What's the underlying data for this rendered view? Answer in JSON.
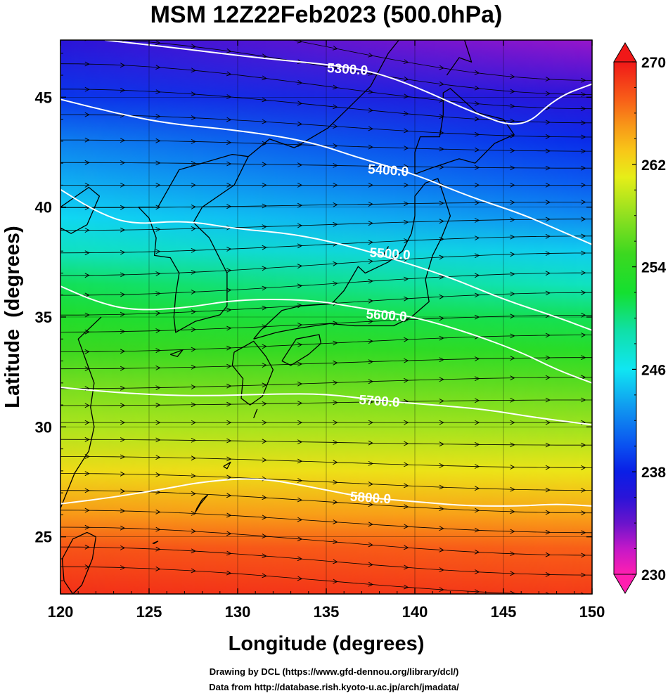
{
  "chart_data": {
    "type": "heatmap",
    "title": "MSM 12Z22Feb2023 (500.0hPa)",
    "xlabel": "Longitude (degrees)",
    "ylabel": "Latitude  (degrees)",
    "xlim": [
      120,
      150
    ],
    "ylim": [
      22.4,
      47.6
    ],
    "x_ticks": [
      "120",
      "125",
      "130",
      "135",
      "140",
      "145",
      "150"
    ],
    "y_ticks": [
      "25",
      "30",
      "35",
      "40",
      "45"
    ],
    "grid": true,
    "colorbar": {
      "min": 230,
      "max": 270,
      "ticks": [
        "230",
        "238",
        "246",
        "254",
        "262",
        "270"
      ],
      "extend": "both",
      "stops": [
        {
          "value": 230,
          "color": "#ff1fb0"
        },
        {
          "value": 232,
          "color": "#c418c8"
        },
        {
          "value": 234,
          "color": "#6a14cc"
        },
        {
          "value": 236,
          "color": "#2a14d8"
        },
        {
          "value": 238,
          "color": "#0a1ee6"
        },
        {
          "value": 240,
          "color": "#0a50f0"
        },
        {
          "value": 243,
          "color": "#1098f0"
        },
        {
          "value": 246,
          "color": "#10e6f2"
        },
        {
          "value": 249,
          "color": "#10e0a8"
        },
        {
          "value": 252,
          "color": "#14e030"
        },
        {
          "value": 255,
          "color": "#3cd820"
        },
        {
          "value": 258,
          "color": "#90e020"
        },
        {
          "value": 261,
          "color": "#e6ee18"
        },
        {
          "value": 263,
          "color": "#f8c818"
        },
        {
          "value": 265,
          "color": "#f89818"
        },
        {
          "value": 267,
          "color": "#f86018"
        },
        {
          "value": 270,
          "color": "#f01818"
        }
      ]
    },
    "temperature_field": {
      "lat": [
        47.6,
        45,
        43,
        41,
        39.5,
        38,
        36.5,
        35,
        33.5,
        32,
        30,
        28,
        26,
        24.5,
        22.4
      ],
      "values_west": [
        236,
        239,
        242,
        244,
        245.5,
        248,
        251,
        253,
        255,
        257,
        259,
        262,
        265,
        267.5,
        269
      ],
      "values_east": [
        233,
        236,
        238.5,
        240.5,
        242.5,
        245,
        248,
        251,
        253.5,
        256,
        258.5,
        261.5,
        264.5,
        267,
        268.5
      ]
    },
    "height_contours": [
      {
        "label": "5300.0",
        "value": 5300,
        "points": [
          [
            122.5,
            47.6
          ],
          [
            127,
            47.2
          ],
          [
            131,
            46.8
          ],
          [
            135,
            46.5
          ],
          [
            137.5,
            46.2
          ],
          [
            140,
            45.5
          ],
          [
            143,
            44.4
          ],
          [
            146,
            43.5
          ],
          [
            148,
            45
          ],
          [
            150,
            45.6
          ]
        ],
        "label_at": [
          136.2,
          46.3
        ]
      },
      {
        "label": "5400.0",
        "value": 5400,
        "points": [
          [
            120,
            44.9
          ],
          [
            123,
            44.3
          ],
          [
            126,
            43.8
          ],
          [
            130,
            43.5
          ],
          [
            134,
            43
          ],
          [
            137,
            42.2
          ],
          [
            140,
            41.5
          ],
          [
            143,
            40.5
          ],
          [
            146,
            39.7
          ],
          [
            148,
            39
          ],
          [
            150,
            38.3
          ]
        ],
        "label_at": [
          138.5,
          41.7
        ]
      },
      {
        "label": "5500.0",
        "value": 5500,
        "points": [
          [
            120,
            40.8
          ],
          [
            122,
            39.8
          ],
          [
            124,
            39.2
          ],
          [
            127,
            39.4
          ],
          [
            130,
            39
          ],
          [
            133,
            38.8
          ],
          [
            136,
            38.3
          ],
          [
            139,
            37.6
          ],
          [
            142,
            36.8
          ],
          [
            145,
            35.8
          ],
          [
            148,
            35
          ],
          [
            150,
            34.4
          ]
        ],
        "label_at": [
          138.6,
          37.9
        ]
      },
      {
        "label": "5600.0",
        "value": 5600,
        "points": [
          [
            120,
            36.4
          ],
          [
            122,
            35.7
          ],
          [
            124,
            35.3
          ],
          [
            127,
            35.4
          ],
          [
            130,
            35.8
          ],
          [
            134,
            35.8
          ],
          [
            137,
            35.4
          ],
          [
            140,
            35
          ],
          [
            143,
            34.3
          ],
          [
            146,
            33.4
          ],
          [
            148,
            32.6
          ],
          [
            150,
            32
          ]
        ],
        "label_at": [
          138.4,
          35.1
        ]
      },
      {
        "label": "5700.0",
        "value": 5700,
        "points": [
          [
            120,
            31.8
          ],
          [
            124,
            31.5
          ],
          [
            128,
            31.4
          ],
          [
            132,
            31.5
          ],
          [
            135,
            31.5
          ],
          [
            138,
            31.2
          ],
          [
            141,
            31
          ],
          [
            144,
            30.8
          ],
          [
            147,
            30.4
          ],
          [
            150,
            30.1
          ]
        ],
        "label_at": [
          138,
          31.2
        ]
      },
      {
        "label": "5800.0",
        "value": 5800,
        "points": [
          [
            120,
            26.5
          ],
          [
            123,
            26.8
          ],
          [
            126,
            27.2
          ],
          [
            128,
            27.5
          ],
          [
            131,
            27.7
          ],
          [
            134,
            27.3
          ],
          [
            137,
            26.8
          ],
          [
            140,
            26.6
          ],
          [
            143,
            26.4
          ],
          [
            146,
            26.4
          ],
          [
            148,
            26.5
          ],
          [
            150,
            26.4
          ]
        ],
        "label_at": [
          137.5,
          26.8
        ]
      }
    ],
    "wind_streamlines": [
      {
        "lat": 47.3,
        "angle": 12
      },
      {
        "lat": 46.4,
        "angle": 10
      },
      {
        "lat": 45.5,
        "angle": 8
      },
      {
        "lat": 44.6,
        "angle": 6
      },
      {
        "lat": 43.7,
        "angle": 4
      },
      {
        "lat": 42.8,
        "angle": 2
      },
      {
        "lat": 41.9,
        "angle": 1
      },
      {
        "lat": 41.0,
        "angle": 0
      },
      {
        "lat": 40.1,
        "angle": -1
      },
      {
        "lat": 39.2,
        "angle": -2
      },
      {
        "lat": 38.3,
        "angle": -3
      },
      {
        "lat": 37.4,
        "angle": -4
      },
      {
        "lat": 36.5,
        "angle": -4
      },
      {
        "lat": 35.6,
        "angle": -4
      },
      {
        "lat": 34.7,
        "angle": -3
      },
      {
        "lat": 33.8,
        "angle": -3
      },
      {
        "lat": 32.9,
        "angle": -2
      },
      {
        "lat": 32.0,
        "angle": -2
      },
      {
        "lat": 31.1,
        "angle": -1
      },
      {
        "lat": 30.2,
        "angle": 0
      },
      {
        "lat": 29.3,
        "angle": 1
      },
      {
        "lat": 28.4,
        "angle": 2
      },
      {
        "lat": 27.5,
        "angle": 3
      },
      {
        "lat": 26.6,
        "angle": 4
      },
      {
        "lat": 25.7,
        "angle": 4
      },
      {
        "lat": 24.8,
        "angle": 5
      },
      {
        "lat": 23.9,
        "angle": 5
      },
      {
        "lat": 23.0,
        "angle": 5
      }
    ],
    "coastlines": [
      {
        "name": "Honshu",
        "points": [
          [
            130.9,
            34.0
          ],
          [
            132.2,
            34.3
          ],
          [
            133.5,
            34.5
          ],
          [
            135.2,
            34.7
          ],
          [
            136.6,
            34.6
          ],
          [
            137.3,
            34.6
          ],
          [
            138.8,
            34.6
          ],
          [
            139.8,
            35.0
          ],
          [
            140.8,
            35.7
          ],
          [
            140.6,
            36.7
          ],
          [
            141.0,
            37.8
          ],
          [
            141.5,
            38.6
          ],
          [
            142.0,
            39.6
          ],
          [
            141.6,
            40.6
          ],
          [
            141.3,
            41.3
          ],
          [
            140.6,
            41.1
          ],
          [
            140.0,
            40.5
          ],
          [
            140.0,
            39.6
          ],
          [
            139.8,
            38.8
          ],
          [
            139.3,
            38.0
          ],
          [
            138.5,
            37.5
          ],
          [
            137.2,
            37.0
          ],
          [
            136.8,
            37.3
          ],
          [
            136.0,
            36.2
          ],
          [
            135.3,
            35.6
          ],
          [
            133.5,
            35.5
          ],
          [
            132.5,
            35.3
          ],
          [
            131.3,
            34.4
          ],
          [
            130.9,
            34.0
          ]
        ]
      },
      {
        "name": "Hokkaido",
        "points": [
          [
            140.0,
            41.5
          ],
          [
            141.0,
            41.8
          ],
          [
            142.5,
            42.2
          ],
          [
            143.4,
            42.0
          ],
          [
            144.5,
            42.9
          ],
          [
            145.6,
            43.3
          ],
          [
            145.0,
            44.0
          ],
          [
            143.5,
            44.3
          ],
          [
            142.0,
            45.4
          ],
          [
            141.6,
            45.2
          ],
          [
            141.6,
            44.2
          ],
          [
            141.4,
            43.2
          ],
          [
            140.3,
            43.2
          ],
          [
            140.0,
            42.5
          ],
          [
            140.0,
            41.5
          ]
        ]
      },
      {
        "name": "Kyushu",
        "points": [
          [
            129.8,
            33.4
          ],
          [
            130.9,
            33.9
          ],
          [
            131.6,
            33.2
          ],
          [
            132.0,
            32.6
          ],
          [
            131.4,
            31.4
          ],
          [
            130.7,
            31.0
          ],
          [
            130.2,
            31.3
          ],
          [
            130.3,
            32.2
          ],
          [
            129.7,
            32.8
          ],
          [
            129.8,
            33.4
          ]
        ]
      },
      {
        "name": "Shikoku",
        "points": [
          [
            132.5,
            33.0
          ],
          [
            133.3,
            34.0
          ],
          [
            134.6,
            34.2
          ],
          [
            134.7,
            33.8
          ],
          [
            134.0,
            33.3
          ],
          [
            133.0,
            32.8
          ],
          [
            132.5,
            33.0
          ]
        ]
      },
      {
        "name": "Korea",
        "points": [
          [
            128.4,
            38.6
          ],
          [
            129.4,
            37.0
          ],
          [
            129.4,
            35.5
          ],
          [
            129.0,
            35.1
          ],
          [
            127.6,
            34.8
          ],
          [
            126.5,
            34.3
          ],
          [
            126.4,
            35.0
          ],
          [
            126.5,
            36.0
          ],
          [
            126.7,
            37.0
          ],
          [
            126.2,
            37.7
          ],
          [
            125.3,
            37.8
          ],
          [
            125.4,
            38.6
          ],
          [
            125.0,
            39.5
          ],
          [
            124.4,
            40.0
          ],
          [
            125.5,
            40.0
          ],
          [
            126.7,
            41.7
          ],
          [
            128.0,
            42.0
          ],
          [
            129.7,
            42.4
          ],
          [
            130.6,
            42.3
          ],
          [
            129.8,
            41.0
          ],
          [
            128.0,
            40.0
          ],
          [
            127.5,
            39.3
          ],
          [
            128.4,
            38.6
          ]
        ]
      },
      {
        "name": "Mainland",
        "points": [
          [
            120.0,
            40.0
          ],
          [
            121.6,
            40.9
          ],
          [
            122.2,
            40.5
          ],
          [
            121.5,
            39.2
          ],
          [
            120.6,
            38.8
          ],
          [
            119.9,
            39.1
          ]
        ]
      },
      {
        "name": "Primorye",
        "points": [
          [
            130.6,
            42.3
          ],
          [
            131.8,
            43.1
          ],
          [
            133.2,
            42.7
          ],
          [
            135.1,
            43.6
          ],
          [
            137.5,
            45.5
          ],
          [
            138.5,
            47.0
          ],
          [
            139.1,
            47.6
          ]
        ]
      },
      {
        "name": "Sakhalin",
        "points": [
          [
            141.8,
            46.0
          ],
          [
            142.5,
            46.8
          ],
          [
            143.2,
            46.6
          ],
          [
            142.8,
            47.6
          ]
        ]
      },
      {
        "name": "China",
        "points": [
          [
            122.3,
            35.0
          ],
          [
            121.0,
            34.0
          ],
          [
            121.9,
            32.0
          ],
          [
            121.7,
            30.9
          ],
          [
            121.9,
            30.0
          ],
          [
            121.6,
            28.9
          ],
          [
            120.8,
            27.9
          ],
          [
            120.2,
            26.7
          ],
          [
            119.6,
            25.5
          ],
          [
            118.8,
            24.6
          ],
          [
            117.8,
            23.9
          ],
          [
            117.0,
            23.4
          ]
        ]
      },
      {
        "name": "Taiwan",
        "points": [
          [
            121.5,
            25.2
          ],
          [
            122.0,
            25.0
          ],
          [
            121.8,
            24.0
          ],
          [
            121.2,
            22.8
          ],
          [
            120.7,
            22.4
          ],
          [
            120.2,
            23.0
          ],
          [
            120.1,
            24.0
          ],
          [
            120.7,
            24.9
          ],
          [
            121.5,
            25.2
          ]
        ]
      },
      {
        "name": "Okinawa",
        "points": [
          [
            127.6,
            26.1
          ],
          [
            127.9,
            26.5
          ],
          [
            128.3,
            26.9
          ],
          [
            128.0,
            26.7
          ],
          [
            127.7,
            26.3
          ],
          [
            127.6,
            26.1
          ]
        ]
      },
      {
        "name": "Amami",
        "points": [
          [
            129.2,
            28.2
          ],
          [
            129.6,
            28.4
          ],
          [
            129.4,
            28.1
          ],
          [
            129.2,
            28.2
          ]
        ]
      },
      {
        "name": "Jeju",
        "points": [
          [
            126.2,
            33.3
          ],
          [
            126.9,
            33.5
          ],
          [
            126.6,
            33.2
          ],
          [
            126.2,
            33.3
          ]
        ]
      },
      {
        "name": "Tanegashima",
        "points": [
          [
            130.9,
            30.4
          ],
          [
            131.1,
            30.8
          ],
          [
            130.95,
            30.5
          ],
          [
            130.9,
            30.4
          ]
        ]
      },
      {
        "name": "Sado",
        "points": [
          [
            138.2,
            37.8
          ],
          [
            138.5,
            38.2
          ],
          [
            138.3,
            37.9
          ],
          [
            138.2,
            37.8
          ]
        ]
      },
      {
        "name": "Miyako",
        "points": [
          [
            125.2,
            24.7
          ],
          [
            125.5,
            24.8
          ],
          [
            125.3,
            24.7
          ],
          [
            125.2,
            24.7
          ]
        ]
      }
    ]
  },
  "credits": {
    "drawing": "Drawing by DCL (https://www.gfd-dennou.org/library/dcl/)",
    "data": "Data from http://database.rish.kyoto-u.ac.jp/arch/jmadata/"
  }
}
